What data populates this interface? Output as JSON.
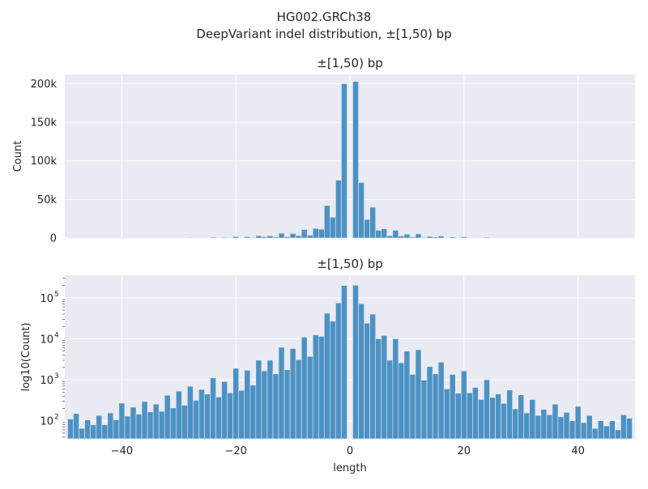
{
  "figure": {
    "suptitle_line1": "HG002.GRCh38",
    "suptitle_line2": "DeepVariant indel distribution, ±[1,50) bp"
  },
  "colors": {
    "bar": "#4c92c3",
    "panel_bg": "#eaeaf2",
    "grid": "#ffffff"
  },
  "chart_data": [
    {
      "type": "bar",
      "title": "±[1,50) bp",
      "xlabel": "",
      "ylabel": "Count",
      "yscale": "linear",
      "xlim": [
        -50,
        50
      ],
      "ylim": [
        0,
        212000
      ],
      "yticks": [
        0,
        50000,
        100000,
        150000,
        200000
      ],
      "ytick_labels": [
        "0",
        "50k",
        "100k",
        "150k",
        "200k"
      ],
      "xticks": [
        -40,
        -20,
        0,
        20,
        40
      ],
      "xtick_labels": [],
      "grid": true,
      "x": [
        -49,
        -48,
        -47,
        -46,
        -45,
        -44,
        -43,
        -42,
        -41,
        -40,
        -39,
        -38,
        -37,
        -36,
        -35,
        -34,
        -33,
        -32,
        -31,
        -30,
        -29,
        -28,
        -27,
        -26,
        -25,
        -24,
        -23,
        -22,
        -21,
        -20,
        -19,
        -18,
        -17,
        -16,
        -15,
        -14,
        -13,
        -12,
        -11,
        -10,
        -9,
        -8,
        -7,
        -6,
        -5,
        -4,
        -3,
        -2,
        -1,
        1,
        2,
        3,
        4,
        5,
        6,
        7,
        8,
        9,
        10,
        11,
        12,
        13,
        14,
        15,
        16,
        17,
        18,
        19,
        20,
        21,
        22,
        23,
        24,
        25,
        26,
        27,
        28,
        29,
        30,
        31,
        32,
        33,
        34,
        35,
        36,
        37,
        38,
        39,
        40,
        41,
        42,
        43,
        44,
        45,
        46,
        47,
        48,
        49
      ],
      "values": [
        110,
        150,
        65,
        105,
        80,
        135,
        80,
        155,
        105,
        270,
        130,
        215,
        145,
        295,
        165,
        255,
        170,
        420,
        205,
        530,
        240,
        690,
        315,
        580,
        450,
        1120,
        380,
        900,
        480,
        1900,
        550,
        1700,
        740,
        3000,
        1650,
        3000,
        1400,
        6200,
        1750,
        5800,
        3100,
        11000,
        3700,
        12500,
        11500,
        42000,
        27000,
        75000,
        200000,
        203000,
        72000,
        24000,
        40000,
        10000,
        12000,
        3000,
        10000,
        2600,
        5000,
        1350,
        5400,
        980,
        2100,
        1400,
        2700,
        600,
        1350,
        470,
        1650,
        480,
        650,
        330,
        1000,
        370,
        450,
        265,
        560,
        195,
        430,
        155,
        330,
        135,
        190,
        140,
        255,
        125,
        160,
        100,
        225,
        90,
        135,
        65,
        100,
        75,
        100,
        60,
        140,
        115
      ]
    },
    {
      "type": "bar",
      "title": "±[1,50) bp",
      "xlabel": "length",
      "ylabel": "log10(Count)",
      "yscale": "log",
      "xlim": [
        -50,
        50
      ],
      "ylim_log10": [
        1.56,
        5.55
      ],
      "yticks": [
        100,
        1000,
        10000,
        100000
      ],
      "ytick_base": "10",
      "ytick_exponents": [
        "2",
        "3",
        "4",
        "5"
      ],
      "xticks": [
        -40,
        -20,
        0,
        20,
        40
      ],
      "xtick_labels": [
        "−40",
        "−20",
        "0",
        "20",
        "40"
      ],
      "grid": true,
      "same_data_as": 0
    }
  ]
}
